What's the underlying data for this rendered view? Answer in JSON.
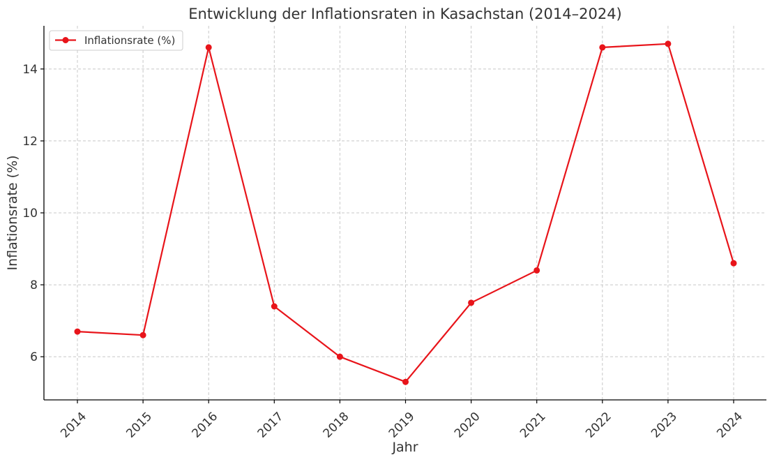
{
  "chart_data": {
    "type": "line",
    "title": "Entwicklung der Inflationsraten in Kasachstan (2014–2024)",
    "xlabel": "Jahr",
    "ylabel": "Inflationsrate (%)",
    "categories": [
      "2014",
      "2015",
      "2016",
      "2017",
      "2018",
      "2019",
      "2020",
      "2021",
      "2022",
      "2023",
      "2024"
    ],
    "series": [
      {
        "name": "Inflationsrate (%)",
        "color": "#e8141a",
        "marker": "circle",
        "values": [
          6.7,
          6.6,
          14.6,
          7.4,
          6.0,
          5.3,
          7.5,
          8.4,
          14.6,
          14.7,
          8.6
        ]
      }
    ],
    "ylim": [
      4.8,
      15.2
    ],
    "yticks": [
      6,
      8,
      10,
      12,
      14
    ],
    "grid": true,
    "grid_style": "dashed",
    "legend_position": "top-left",
    "xtick_rotation": 45
  }
}
